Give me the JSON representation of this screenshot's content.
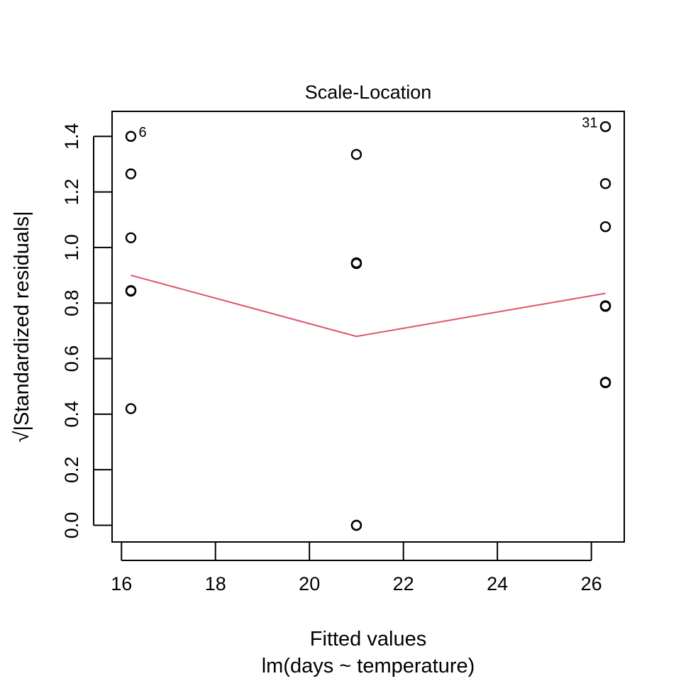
{
  "chart_data": {
    "type": "scatter",
    "title": "Scale-Location",
    "xlabel": "Fitted values",
    "ylabel": "√|Standardized residuals|",
    "sub_label": "lm(days ~ temperature)",
    "xlim": [
      15.8,
      26.7
    ],
    "ylim": [
      -0.06,
      1.49
    ],
    "x_ticks": [
      16,
      18,
      20,
      22,
      24,
      26
    ],
    "y_ticks": [
      0.0,
      0.2,
      0.4,
      0.6,
      0.8,
      1.0,
      1.2,
      1.4
    ],
    "y_tick_labels": [
      "0.0",
      "0.2",
      "0.4",
      "0.6",
      "0.8",
      "1.0",
      "1.2",
      "1.4"
    ],
    "grid": false,
    "series": [
      {
        "x": [
          16.2,
          16.2,
          16.2,
          16.2,
          16.2,
          16.2,
          21.0,
          21.0,
          21.0,
          21.0,
          21.0,
          26.3,
          26.3,
          26.3,
          26.3,
          26.3,
          26.3,
          26.3,
          26.3
        ],
        "y": [
          1.4,
          1.265,
          1.035,
          0.845,
          0.843,
          0.42,
          1.335,
          0.945,
          0.942,
          0.0,
          0.0,
          1.435,
          1.23,
          1.075,
          0.79,
          0.788,
          0.515,
          0.513,
          0.79
        ],
        "marker": "open-circle",
        "color": "#000000"
      }
    ],
    "smoother": {
      "x": [
        16.2,
        21.0,
        26.3
      ],
      "y": [
        0.9,
        0.68,
        0.835
      ],
      "color": "#DF536B"
    },
    "point_labels": [
      {
        "text": "6",
        "x": 16.2,
        "y": 1.4,
        "side": "right"
      },
      {
        "text": "31",
        "x": 26.3,
        "y": 1.435,
        "side": "left"
      }
    ]
  }
}
